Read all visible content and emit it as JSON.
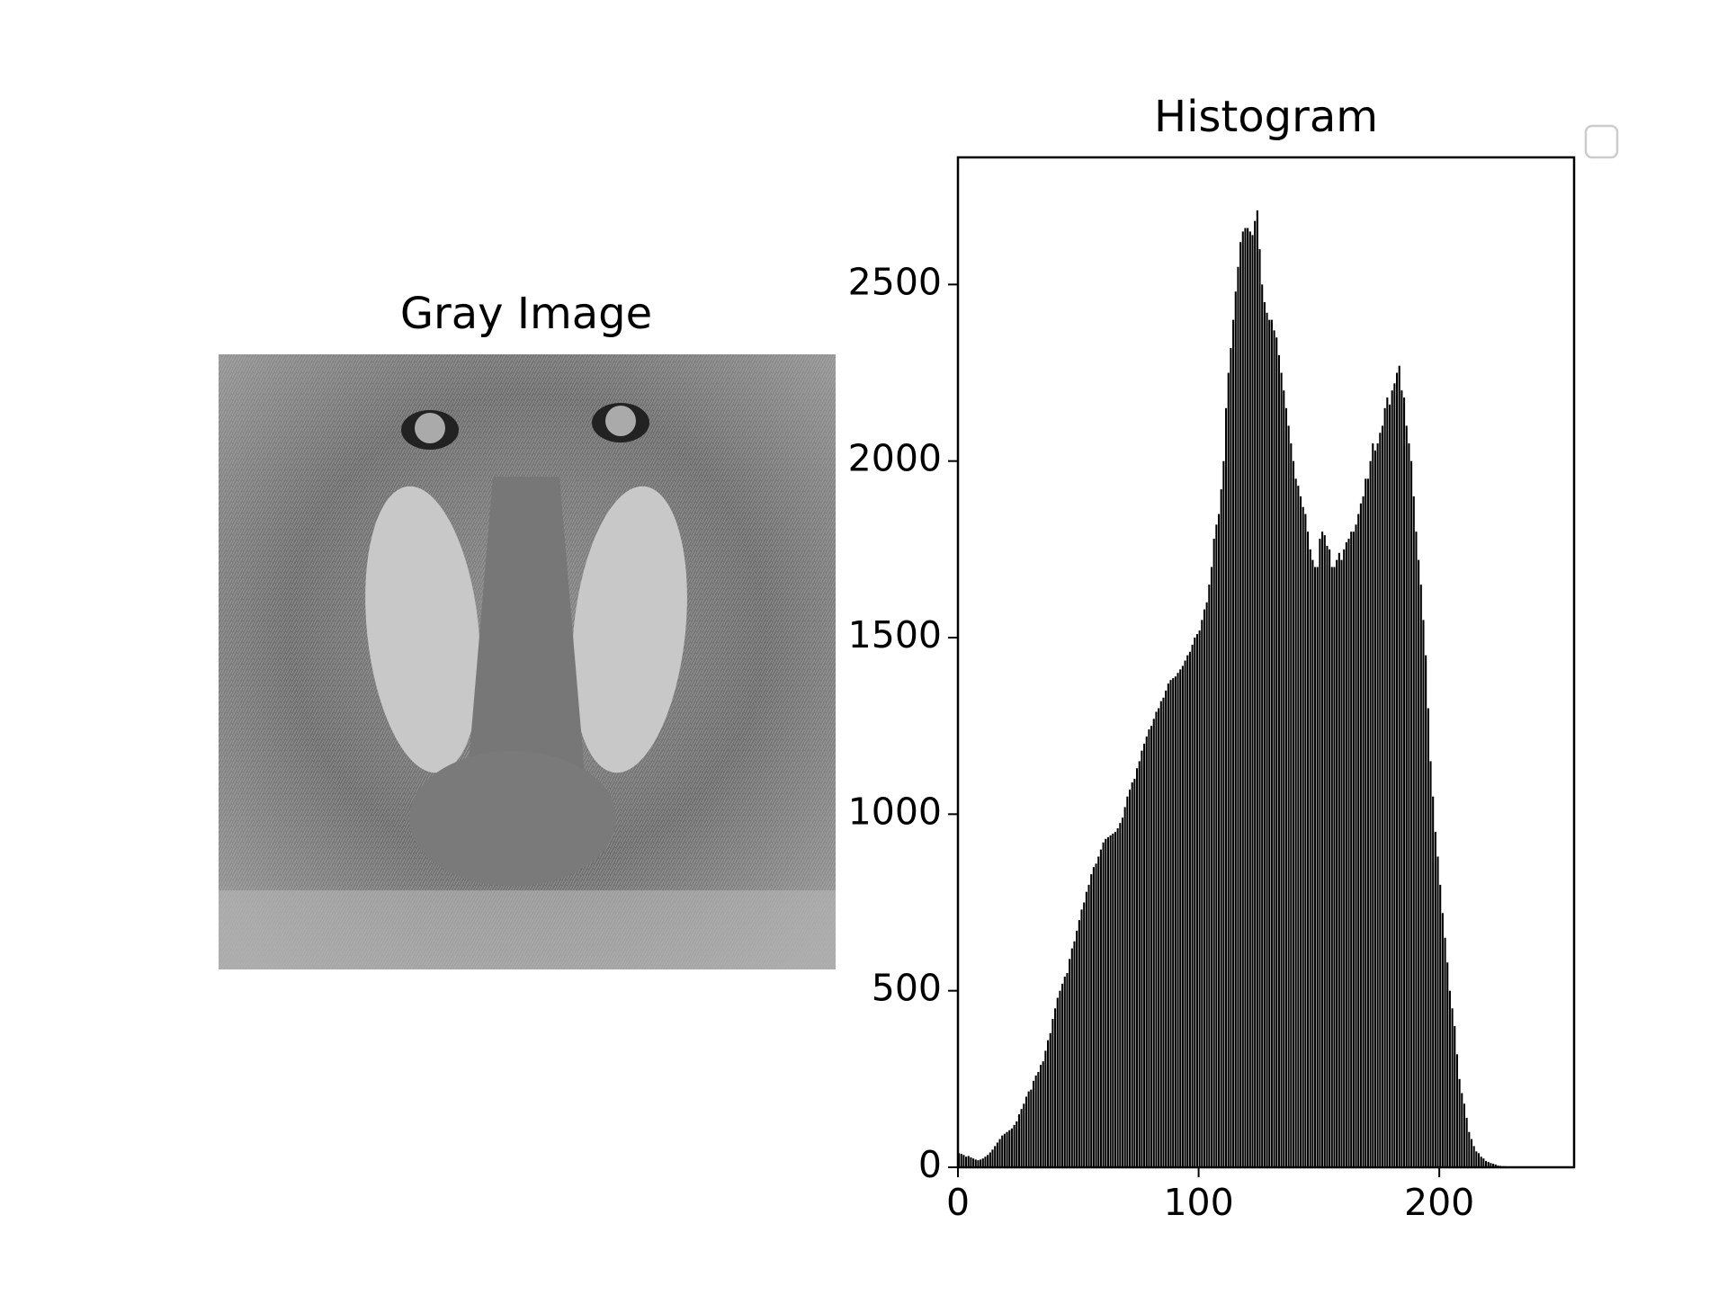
{
  "chart_data": [
    {
      "type": "image",
      "title": "Gray Image"
    },
    {
      "type": "histogram",
      "title": "Histogram",
      "color": "#000000",
      "legend": true,
      "xlim": [
        0,
        256
      ],
      "xticks": [
        0,
        100,
        200
      ],
      "ylim": [
        0,
        2860
      ],
      "yticks": [
        0,
        500,
        1000,
        1500,
        2000,
        2500
      ],
      "bins": [
        0,
        1,
        2,
        3,
        4,
        5,
        6,
        7,
        8,
        9,
        10,
        11,
        12,
        13,
        14,
        15,
        16,
        17,
        18,
        19,
        20,
        21,
        22,
        23,
        24,
        25,
        26,
        27,
        28,
        29,
        30,
        31,
        32,
        33,
        34,
        35,
        36,
        37,
        38,
        39,
        40,
        41,
        42,
        43,
        44,
        45,
        46,
        47,
        48,
        49,
        50,
        51,
        52,
        53,
        54,
        55,
        56,
        57,
        58,
        59,
        60,
        61,
        62,
        63,
        64,
        65,
        66,
        67,
        68,
        69,
        70,
        71,
        72,
        73,
        74,
        75,
        76,
        77,
        78,
        79,
        80,
        81,
        82,
        83,
        84,
        85,
        86,
        87,
        88,
        89,
        90,
        91,
        92,
        93,
        94,
        95,
        96,
        97,
        98,
        99,
        100,
        101,
        102,
        103,
        104,
        105,
        106,
        107,
        108,
        109,
        110,
        111,
        112,
        113,
        114,
        115,
        116,
        117,
        118,
        119,
        120,
        121,
        122,
        123,
        124,
        125,
        126,
        127,
        128,
        129,
        130,
        131,
        132,
        133,
        134,
        135,
        136,
        137,
        138,
        139,
        140,
        141,
        142,
        143,
        144,
        145,
        146,
        147,
        148,
        149,
        150,
        151,
        152,
        153,
        154,
        155,
        156,
        157,
        158,
        159,
        160,
        161,
        162,
        163,
        164,
        165,
        166,
        167,
        168,
        169,
        170,
        171,
        172,
        173,
        174,
        175,
        176,
        177,
        178,
        179,
        180,
        181,
        182,
        183,
        184,
        185,
        186,
        187,
        188,
        189,
        190,
        191,
        192,
        193,
        194,
        195,
        196,
        197,
        198,
        199,
        200,
        201,
        202,
        203,
        204,
        205,
        206,
        207,
        208,
        209,
        210,
        211,
        212,
        213,
        214,
        215,
        216,
        217,
        218,
        219,
        220,
        221,
        222,
        223,
        224,
        225,
        226,
        227,
        228,
        229,
        230,
        231,
        232,
        233,
        234,
        235,
        236,
        237,
        238,
        239,
        240,
        241,
        242,
        243,
        244,
        245,
        246,
        247,
        248,
        249,
        250,
        251,
        252,
        253,
        254,
        255,
        256
      ],
      "values": [
        40,
        38,
        35,
        30,
        32,
        28,
        25,
        22,
        20,
        22,
        25,
        30,
        35,
        42,
        50,
        60,
        70,
        80,
        90,
        95,
        100,
        105,
        110,
        120,
        130,
        150,
        165,
        180,
        200,
        215,
        220,
        245,
        260,
        270,
        290,
        300,
        330,
        360,
        380,
        420,
        450,
        480,
        500,
        520,
        540,
        550,
        590,
        620,
        640,
        670,
        700,
        730,
        750,
        780,
        800,
        830,
        850,
        860,
        880,
        900,
        920,
        930,
        935,
        940,
        945,
        950,
        960,
        975,
        990,
        1020,
        1050,
        1070,
        1090,
        1100,
        1130,
        1150,
        1180,
        1200,
        1220,
        1240,
        1250,
        1270,
        1290,
        1300,
        1320,
        1330,
        1350,
        1370,
        1380,
        1385,
        1390,
        1400,
        1410,
        1420,
        1435,
        1450,
        1460,
        1480,
        1500,
        1510,
        1520,
        1550,
        1580,
        1600,
        1650,
        1700,
        1780,
        1820,
        1850,
        1920,
        2000,
        2150,
        2250,
        2320,
        2400,
        2480,
        2550,
        2620,
        2650,
        2660,
        2660,
        2650,
        2640,
        2680,
        2710,
        2600,
        2500,
        2450,
        2420,
        2400,
        2400,
        2370,
        2350,
        2300,
        2250,
        2200,
        2150,
        2100,
        2050,
        2000,
        1950,
        1930,
        1900,
        1870,
        1850,
        1800,
        1750,
        1720,
        1700,
        1700,
        1780,
        1800,
        1790,
        1760,
        1750,
        1700,
        1700,
        1720,
        1740,
        1720,
        1750,
        1770,
        1780,
        1800,
        1800,
        1820,
        1850,
        1880,
        1900,
        1950,
        1950,
        2000,
        2050,
        2030,
        2050,
        2080,
        2100,
        2150,
        2180,
        2160,
        2200,
        2220,
        2250,
        2270,
        2200,
        2180,
        2100,
        2050,
        2000,
        1900,
        1800,
        1720,
        1650,
        1550,
        1450,
        1300,
        1150,
        1050,
        950,
        880,
        800,
        720,
        650,
        580,
        500,
        450,
        400,
        320,
        250,
        210,
        180,
        140,
        100,
        80,
        60,
        45,
        40,
        30,
        25,
        18,
        15,
        12,
        10,
        8,
        5,
        4,
        3,
        3,
        2,
        2,
        1,
        1,
        1,
        0,
        0,
        0,
        0,
        0,
        0,
        0,
        0,
        0,
        0,
        0,
        0,
        0,
        0,
        0,
        0,
        0,
        0,
        0,
        0,
        0,
        0,
        0
      ]
    }
  ]
}
